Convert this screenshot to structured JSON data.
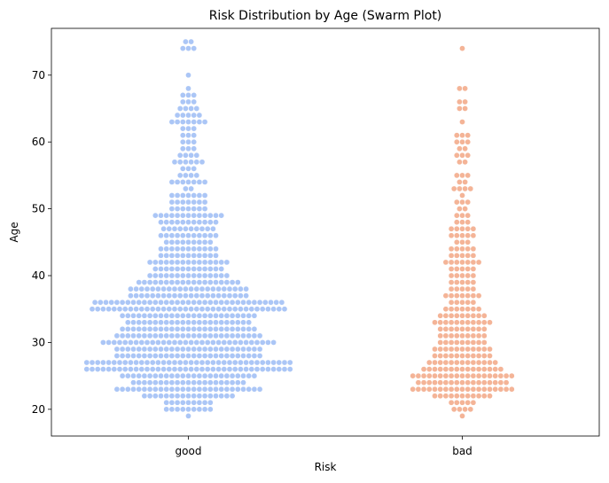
{
  "chart_data": {
    "type": "scatter",
    "subtype": "swarm",
    "title": "Risk Distribution by Age (Swarm Plot)",
    "xlabel": "Risk",
    "ylabel": "Age",
    "categories": [
      "good",
      "bad"
    ],
    "ylim": [
      16,
      77
    ],
    "yticks": [
      20,
      30,
      40,
      50,
      60,
      70
    ],
    "grid": false,
    "series": [
      {
        "category": "good",
        "color": "#abc6f6",
        "counts": {
          "19": 1,
          "20": 9,
          "21": 9,
          "22": 17,
          "23": 27,
          "24": 21,
          "25": 25,
          "26": 38,
          "27": 38,
          "28": 27,
          "29": 27,
          "30": 32,
          "31": 27,
          "32": 25,
          "33": 23,
          "34": 25,
          "35": 36,
          "36": 35,
          "37": 22,
          "38": 22,
          "39": 19,
          "40": 15,
          "41": 13,
          "42": 15,
          "43": 11,
          "44": 11,
          "45": 9,
          "46": 11,
          "47": 10,
          "48": 11,
          "49": 13,
          "50": 7,
          "51": 7,
          "52": 7,
          "53": 2,
          "54": 7,
          "55": 4,
          "56": 3,
          "57": 6,
          "58": 4,
          "59": 3,
          "60": 3,
          "61": 3,
          "62": 3,
          "63": 7,
          "64": 5,
          "65": 4,
          "66": 3,
          "67": 3,
          "68": 1,
          "70": 1,
          "74": 3,
          "75": 2
        }
      },
      {
        "category": "bad",
        "color": "#f4b497",
        "counts": {
          "19": 1,
          "20": 4,
          "21": 5,
          "22": 11,
          "23": 19,
          "24": 17,
          "25": 19,
          "26": 15,
          "27": 13,
          "28": 11,
          "29": 11,
          "30": 9,
          "31": 9,
          "32": 9,
          "33": 11,
          "34": 9,
          "35": 7,
          "36": 5,
          "37": 7,
          "38": 5,
          "39": 5,
          "40": 5,
          "41": 5,
          "42": 7,
          "43": 5,
          "44": 5,
          "45": 3,
          "46": 5,
          "47": 5,
          "48": 3,
          "49": 3,
          "50": 2,
          "51": 3,
          "52": 1,
          "53": 4,
          "54": 2,
          "55": 3,
          "57": 2,
          "58": 3,
          "59": 2,
          "60": 3,
          "61": 3,
          "63": 1,
          "65": 2,
          "66": 2,
          "68": 2,
          "74": 1
        }
      }
    ]
  }
}
